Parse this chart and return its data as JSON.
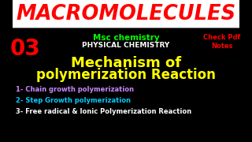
{
  "title": "MACROMOLECULES",
  "title_color": "#FF0000",
  "title_bg": "#FFFFFF",
  "number": "03",
  "number_color": "#FF0000",
  "subtitle1": "Msc chemistry",
  "subtitle1_color": "#00FF00",
  "subtitle2": "PHYSICAL CHEMISTRY",
  "subtitle2_color": "#FFFFFF",
  "check_pdf": "Check Pdf\nNotes",
  "check_pdf_color": "#FF0000",
  "main_text1": "Mechanism of",
  "main_text2": "polymerization Reaction",
  "main_text_color": "#FFFF00",
  "body_bg": "#000000",
  "bullet1": "1- Chain growth polymerization",
  "bullet1_color": "#CC88FF",
  "bullet2": "2- Step Growth polymerization",
  "bullet2_color": "#00CCFF",
  "bullet3": "3- Free radical & Ionic Polymerization Reaction",
  "bullet3_color": "#FFFFFF"
}
